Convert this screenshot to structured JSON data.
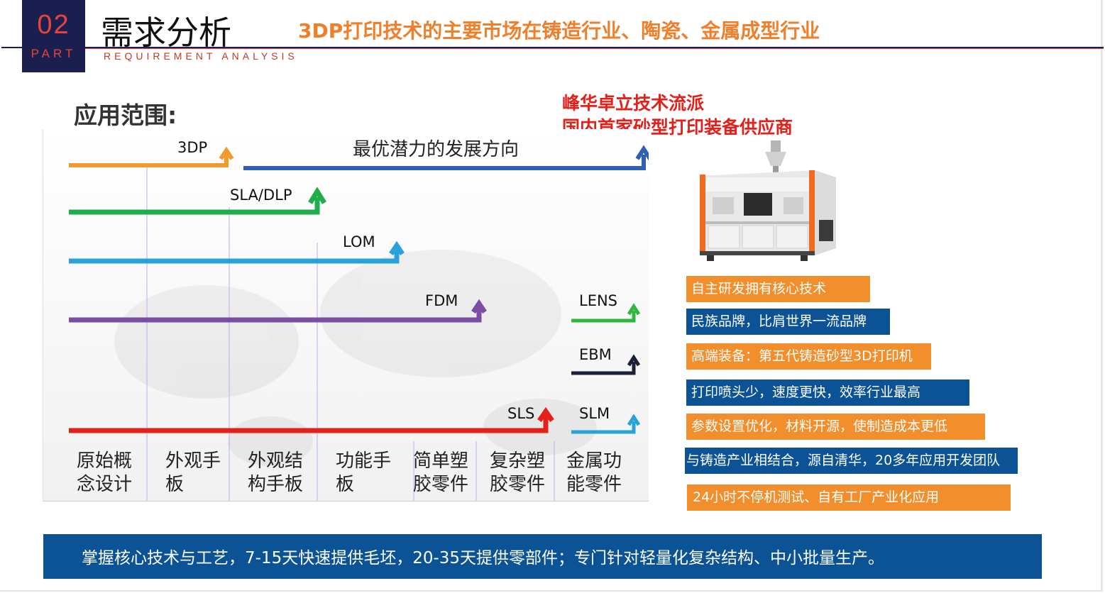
{
  "header": {
    "part_number": "02",
    "part_word": "PART",
    "title": "需求分析",
    "subtitle_en": "REQUIREMENT ANALYSIS",
    "headline": "3DP打印技术的主要市场在铸造行业、陶瓷、金属成型行业"
  },
  "section_title": "应用范围:",
  "red_notes": [
    "峰华卓立技术流派",
    "国内首家砂型打印装备供应商"
  ],
  "diagram": {
    "potential_label": "最优潜力的发展方向",
    "technologies": [
      {
        "name": "3DP",
        "color": "#f39a2e"
      },
      {
        "name": "SLA/DLP",
        "color": "#1fae4b"
      },
      {
        "name": "LOM",
        "color": "#2aa1d8"
      },
      {
        "name": "FDM",
        "color": "#7c4ea3"
      },
      {
        "name": "LENS",
        "color": "#2fb83f"
      },
      {
        "name": "EBM",
        "color": "#1b2035"
      },
      {
        "name": "SLS",
        "color": "#e3211a"
      },
      {
        "name": "SLM",
        "color": "#2aa1d8"
      }
    ],
    "potential_arrow_color": "#2f5fb3",
    "stages": [
      "原始概\n念设计",
      "外观手\n板",
      "外观结\n构手板",
      "功能手\n板",
      "简单塑\n胶零件",
      "复杂塑\n胶零件",
      "金属功\n能零件"
    ]
  },
  "features": [
    {
      "text": "自主研发拥有核心技术",
      "style": "orange"
    },
    {
      "text": "民族品牌，比肩世界一流品牌",
      "style": "blue"
    },
    {
      "text": "高端装备：第五代铸造砂型3D打印机",
      "style": "orange"
    },
    {
      "text": "打印喷头少，速度更快，效率行业最高",
      "style": "blue"
    },
    {
      "text": "参数设置优化，材料开源，使制造成本更低",
      "style": "orange"
    },
    {
      "text": "与铸造产业相结合，源自清华，20多年应用开发团队",
      "style": "blue"
    },
    {
      "text": "24小时不停机测试、自有工厂产业化应用",
      "style": "orange"
    }
  ],
  "bottom_banner": "掌握核心技术与工艺，7-15天快速提供毛坯，20-35天提供零部件；专门针对轻量化复杂结构、中小批量生产。",
  "colors": {
    "navy": "#1b1f4f",
    "accent_red": "#e8443a",
    "orange": "#f28e2b",
    "blue": "#0b5394"
  }
}
